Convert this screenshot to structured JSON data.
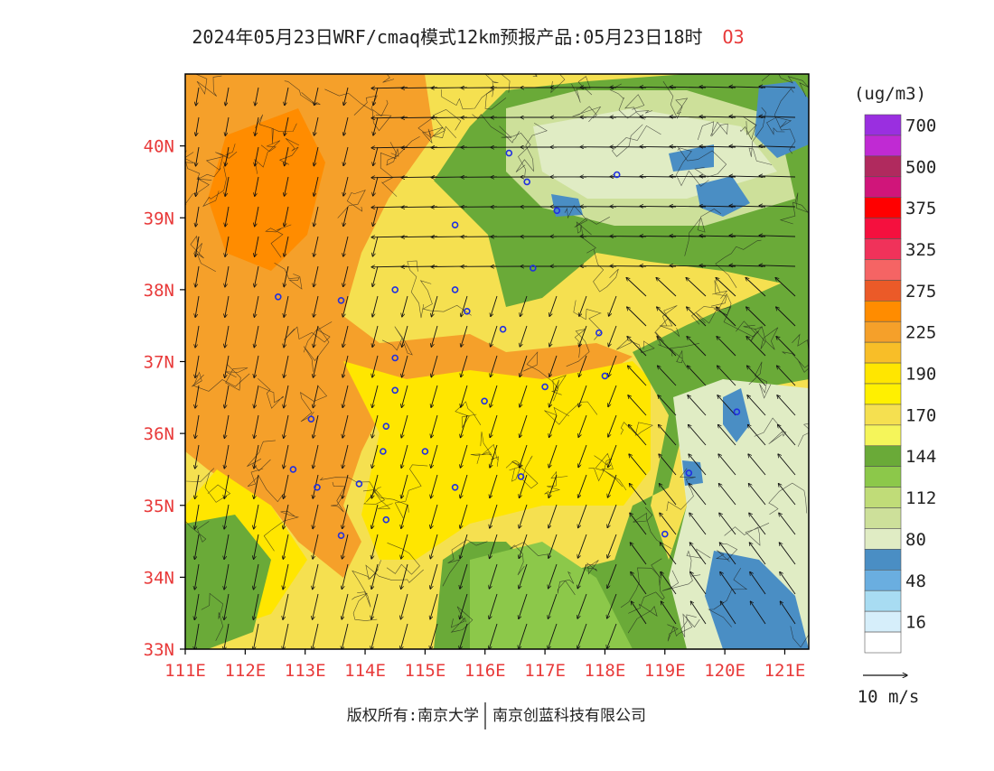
{
  "header": {
    "title": "2024年05月23日WRF/cmaq模式12km预报产品:05月23日18时",
    "species": "O3"
  },
  "map": {
    "lon_range": [
      111,
      121.4
    ],
    "lat_range": [
      33,
      41
    ],
    "lon_ticks": [
      "111E",
      "112E",
      "113E",
      "114E",
      "115E",
      "116E",
      "117E",
      "118E",
      "119E",
      "120E",
      "121E"
    ],
    "lat_ticks": [
      "33N",
      "34N",
      "35N",
      "36N",
      "37N",
      "38N",
      "39N",
      "40N"
    ],
    "stations_lonlat": [
      [
        116.4,
        39.9
      ],
      [
        117.2,
        39.1
      ],
      [
        116.7,
        39.5
      ],
      [
        118.2,
        39.6
      ],
      [
        115.5,
        38.9
      ],
      [
        115.5,
        38.0
      ],
      [
        116.8,
        38.3
      ],
      [
        114.5,
        38.0
      ],
      [
        113.6,
        37.85
      ],
      [
        112.55,
        37.9
      ],
      [
        115.7,
        37.7
      ],
      [
        116.3,
        37.45
      ],
      [
        117.9,
        37.4
      ],
      [
        118.0,
        36.8
      ],
      [
        117.0,
        36.65
      ],
      [
        114.5,
        37.05
      ],
      [
        114.5,
        36.6
      ],
      [
        115.99,
        36.45
      ],
      [
        114.35,
        36.1
      ],
      [
        113.1,
        36.2
      ],
      [
        114.3,
        35.75
      ],
      [
        115.0,
        35.75
      ],
      [
        112.8,
        35.5
      ],
      [
        113.9,
        35.3
      ],
      [
        113.2,
        35.25
      ],
      [
        115.5,
        35.25
      ],
      [
        116.6,
        35.4
      ],
      [
        114.35,
        34.8
      ],
      [
        113.6,
        34.58
      ],
      [
        119.0,
        34.6
      ],
      [
        120.2,
        36.3
      ],
      [
        119.4,
        35.45
      ]
    ]
  },
  "legend": {
    "unit": "(ug/m3)",
    "bins": [
      {
        "color": "#9a2fe0",
        "label": "700"
      },
      {
        "color": "#c02ad3",
        "label": ""
      },
      {
        "color": "#b02a5e",
        "label": "500"
      },
      {
        "color": "#d0157a",
        "label": ""
      },
      {
        "color": "#ff0000",
        "label": "375"
      },
      {
        "color": "#f5103e",
        "label": ""
      },
      {
        "color": "#f0325a",
        "label": "325"
      },
      {
        "color": "#f56464",
        "label": ""
      },
      {
        "color": "#eb5a28",
        "label": "275"
      },
      {
        "color": "#ff8c00",
        "label": ""
      },
      {
        "color": "#f5a02a",
        "label": "225"
      },
      {
        "color": "#f8be28",
        "label": ""
      },
      {
        "color": "#ffe600",
        "label": "190"
      },
      {
        "color": "#fff000",
        "label": ""
      },
      {
        "color": "#f5e050",
        "label": "170"
      },
      {
        "color": "#f5f55a",
        "label": ""
      },
      {
        "color": "#6aaa38",
        "label": "144"
      },
      {
        "color": "#8cc84a",
        "label": ""
      },
      {
        "color": "#c0dc78",
        "label": "112"
      },
      {
        "color": "#cde09a",
        "label": ""
      },
      {
        "color": "#e0ecc4",
        "label": "80"
      },
      {
        "color": "#4a8ec4",
        "label": ""
      },
      {
        "color": "#6aaee0",
        "label": "48"
      },
      {
        "color": "#a8dcf2",
        "label": ""
      },
      {
        "color": "#d6eefa",
        "label": "16"
      },
      {
        "color": "#ffffff",
        "label": ""
      }
    ],
    "wind_key_label": "10 m/s"
  },
  "footer": {
    "copyright_left": "版权所有:南京大学",
    "copyright_right": "南京创蓝科技有限公司"
  }
}
